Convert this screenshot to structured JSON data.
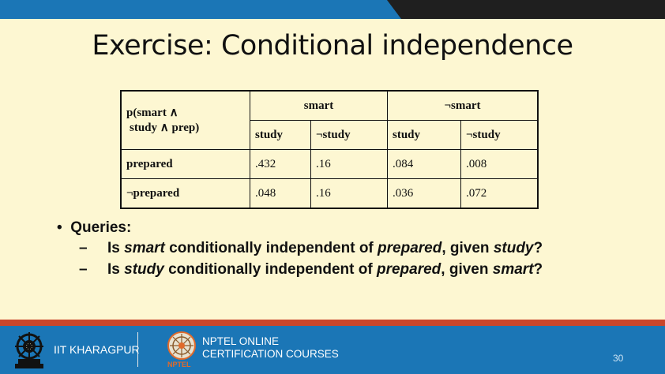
{
  "slide": {
    "title": "Exercise: Conditional independence",
    "page_number": "30"
  },
  "table": {
    "corner_line1": "p(smart ∧",
    "corner_line2": "study ∧ prep)",
    "group_headers": [
      "smart",
      "¬smart"
    ],
    "sub_headers": [
      "study",
      "¬study",
      "study",
      "¬study"
    ],
    "rows": [
      {
        "label": "prepared",
        "values": [
          ".432",
          ".16",
          ".084",
          ".008"
        ]
      },
      {
        "label": "¬prepared",
        "values": [
          ".048",
          ".16",
          ".036",
          ".072"
        ]
      }
    ]
  },
  "bullets": {
    "heading": "Queries:",
    "q1": {
      "p1": "Is ",
      "v1": "smart",
      "p2": " conditionally independent of ",
      "v2": "prepared",
      "p3": ", given ",
      "v3": "study",
      "p4": "?"
    },
    "q2": {
      "p1": "Is ",
      "v1": "study",
      "p2": " conditionally independent of ",
      "v2": "prepared",
      "p3": ", given ",
      "v3": "smart",
      "p4": "?"
    }
  },
  "footer": {
    "institute": "IIT KHARAGPUR",
    "course_line1": "NPTEL ONLINE",
    "course_line2": "CERTIFICATION COURSES",
    "nptel_label": "NPTEL"
  },
  "colors": {
    "background": "#fdf7d2",
    "bar_blue": "#1b76b6",
    "accent_red": "#c9462b",
    "nptel_orange": "#e06a2b"
  }
}
